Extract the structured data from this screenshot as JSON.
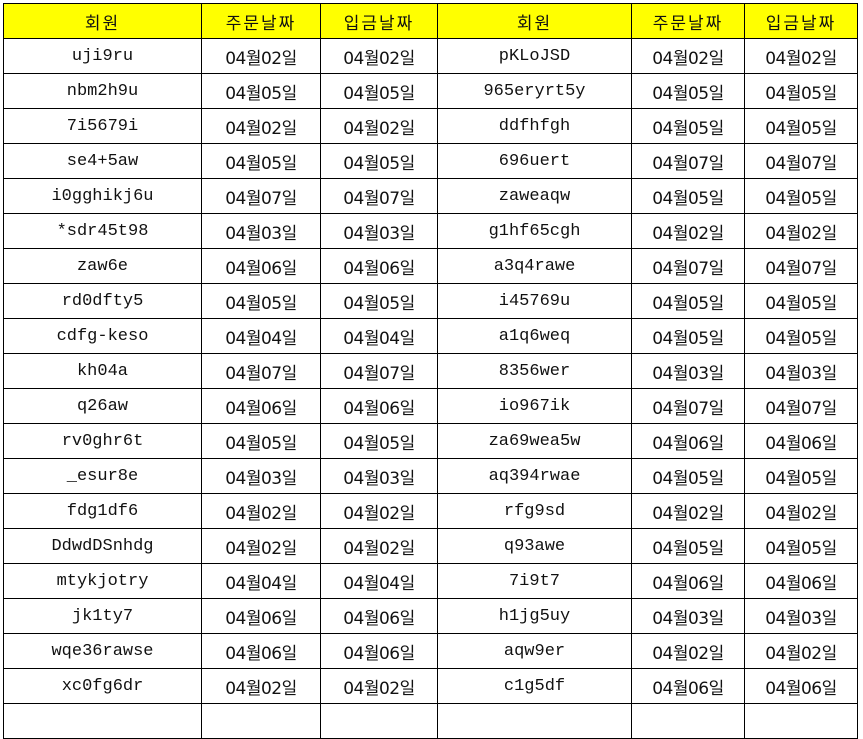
{
  "colors": {
    "header_bg": "#ffff00",
    "grid": "#000000"
  },
  "headers": [
    "회원",
    "주문날짜",
    "입금날짜",
    "회원",
    "주문날짜",
    "입금날짜"
  ],
  "rows": [
    [
      "uji9ru",
      "04월02일",
      "04월02일",
      "pKLoJSD",
      "04월02일",
      "04월02일"
    ],
    [
      "nbm2h9u",
      "04월05일",
      "04월05일",
      "965eryrt5y",
      "04월05일",
      "04월05일"
    ],
    [
      "7i5679i",
      "04월02일",
      "04월02일",
      "ddfhfgh",
      "04월05일",
      "04월05일"
    ],
    [
      "se4+5aw",
      "04월05일",
      "04월05일",
      "696uert",
      "04월07일",
      "04월07일"
    ],
    [
      "i0gghikj6u",
      "04월07일",
      "04월07일",
      "zaweaqw",
      "04월05일",
      "04월05일"
    ],
    [
      "*sdr45t98",
      "04월03일",
      "04월03일",
      "g1hf65cgh",
      "04월02일",
      "04월02일"
    ],
    [
      "zaw6e",
      "04월06일",
      "04월06일",
      "a3q4rawe",
      "04월07일",
      "04월07일"
    ],
    [
      "rd0dfty5",
      "04월05일",
      "04월05일",
      "i45769u",
      "04월05일",
      "04월05일"
    ],
    [
      "cdfg-keso",
      "04월04일",
      "04월04일",
      "a1q6weq",
      "04월05일",
      "04월05일"
    ],
    [
      "kh04a",
      "04월07일",
      "04월07일",
      "8356wer",
      "04월03일",
      "04월03일"
    ],
    [
      "q26aw",
      "04월06일",
      "04월06일",
      "io967ik",
      "04월07일",
      "04월07일"
    ],
    [
      "rv0ghr6t",
      "04월05일",
      "04월05일",
      "za69wea5w",
      "04월06일",
      "04월06일"
    ],
    [
      "_esur8e",
      "04월03일",
      "04월03일",
      "aq394rwae",
      "04월05일",
      "04월05일"
    ],
    [
      "fdg1df6",
      "04월02일",
      "04월02일",
      "rfg9sd",
      "04월02일",
      "04월02일"
    ],
    [
      "DdwdDSnhdg",
      "04월02일",
      "04월02일",
      "q93awe",
      "04월05일",
      "04월05일"
    ],
    [
      "mtykjotry",
      "04월04일",
      "04월04일",
      "7i9t7",
      "04월06일",
      "04월06일"
    ],
    [
      "jk1ty7",
      "04월06일",
      "04월06일",
      "h1jg5uy",
      "04월03일",
      "04월03일"
    ],
    [
      "wqe36rawse",
      "04월06일",
      "04월06일",
      "aqw9er",
      "04월02일",
      "04월02일"
    ],
    [
      "xc0fg6dr",
      "04월02일",
      "04월02일",
      "c1g5df",
      "04월06일",
      "04월06일"
    ]
  ]
}
